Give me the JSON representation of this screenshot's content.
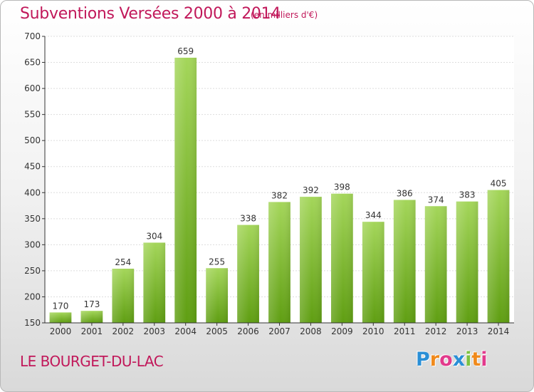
{
  "header": {
    "title": "Subventions Versées 2000 à 2014",
    "subtitle": "(en milliers d'€)"
  },
  "footer": {
    "city": "LE BOURGET-DU-LAC",
    "logo_text": "Proxiti"
  },
  "colors": {
    "title": "#c1185a",
    "bar_light": "#a4d65a",
    "bar_dark": "#5f9e12",
    "grid": "#dddddd",
    "axis": "#333333"
  },
  "chart_data": {
    "type": "bar",
    "title": "Subventions Versées 2000 à 2014",
    "subtitle": "(en milliers d'€)",
    "categories": [
      "2000",
      "2001",
      "2002",
      "2003",
      "2004",
      "2005",
      "2006",
      "2007",
      "2008",
      "2009",
      "2010",
      "2011",
      "2012",
      "2013",
      "2014"
    ],
    "values": [
      170,
      173,
      254,
      304,
      659,
      255,
      338,
      382,
      392,
      398,
      344,
      386,
      374,
      383,
      405
    ],
    "ylim": [
      150,
      700
    ],
    "yticks": [
      150,
      200,
      250,
      300,
      350,
      400,
      450,
      500,
      550,
      600,
      650,
      700
    ],
    "grid": true,
    "data_labels": true,
    "legend": "none"
  }
}
